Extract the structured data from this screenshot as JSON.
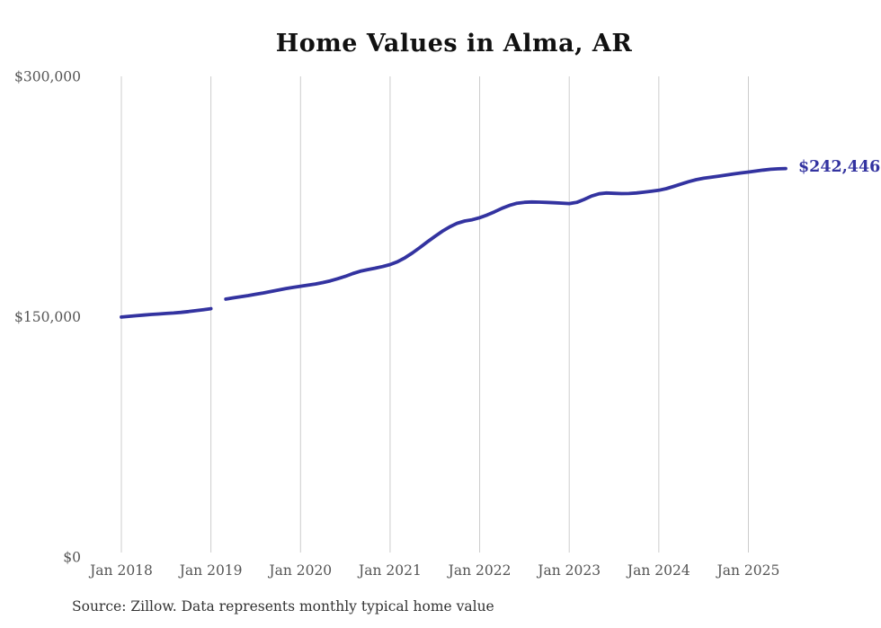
{
  "title": "Home Values in Alma, AR",
  "end_label": "$242,446",
  "source": "Source: Zillow. Data represents monthly typical home value",
  "colors": {
    "line": "#3333a0",
    "grid": "#cccccc",
    "axis_text": "#555555",
    "title_text": "#111111",
    "source_text": "#333333",
    "background": "#ffffff"
  },
  "chart_data": {
    "type": "line",
    "title": "Home Values in Alma, AR",
    "xlabel": "",
    "ylabel": "",
    "ylim": [
      0,
      300000
    ],
    "y_tick_values": [
      0,
      150000,
      300000
    ],
    "y_tick_labels": [
      "$0",
      "$150,000",
      "$300,000"
    ],
    "x_tick_labels": [
      "Jan 2018",
      "Jan 2019",
      "Jan 2020",
      "Jan 2021",
      "Jan 2022",
      "Jan 2023",
      "Jan 2024",
      "Jan 2025"
    ],
    "grid": "vertical-only",
    "legend": "none",
    "frequency": "monthly",
    "start_month": "2018-01",
    "end_month": "2025-06",
    "gap_months": [
      "2019-02"
    ],
    "final_value": 242446,
    "final_value_label": "$242,446",
    "series": [
      {
        "name": "Typical home value (USD)",
        "values": [
          149800,
          150200,
          150600,
          151000,
          151400,
          151700,
          152000,
          152300,
          152700,
          153200,
          153800,
          154400,
          155000,
          null,
          161000,
          161800,
          162500,
          163200,
          164000,
          164800,
          165700,
          166600,
          167500,
          168300,
          169000,
          169700,
          170400,
          171300,
          172400,
          173700,
          175200,
          176900,
          178400,
          179400,
          180300,
          181300,
          182500,
          184300,
          186800,
          189800,
          193200,
          196700,
          200100,
          203300,
          206100,
          208300,
          209700,
          210500,
          211800,
          213500,
          215500,
          217700,
          219500,
          220800,
          221400,
          221600,
          221500,
          221300,
          221100,
          220900,
          220600,
          221300,
          223200,
          225300,
          226700,
          227200,
          227000,
          226800,
          226900,
          227200,
          227700,
          228300,
          228900,
          229900,
          231300,
          232800,
          234300,
          235500,
          236400,
          237100,
          237700,
          238400,
          239100,
          239700,
          240300,
          240900,
          241500,
          242000,
          242300,
          242446
        ]
      }
    ]
  }
}
